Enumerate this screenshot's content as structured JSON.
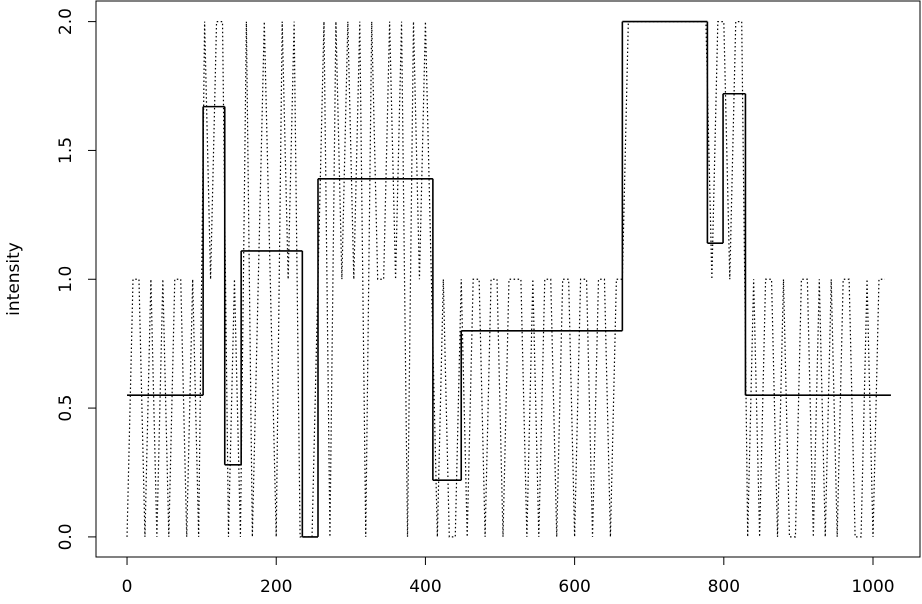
{
  "chart_data": {
    "type": "line",
    "ylabel": "intensity",
    "series": [
      {
        "color": "#000000",
        "linestyle": "dotted",
        "x": [
          0,
          8,
          16,
          24,
          32,
          40,
          48,
          56,
          64,
          72,
          80,
          88,
          96,
          104,
          112,
          120,
          128,
          136,
          144,
          152,
          160,
          168,
          176,
          184,
          192,
          200,
          208,
          216,
          224,
          232,
          240,
          248,
          256,
          264,
          272,
          280,
          288,
          296,
          304,
          312,
          320,
          328,
          336,
          344,
          352,
          360,
          368,
          376,
          384,
          392,
          400,
          408,
          416,
          424,
          432,
          440,
          448,
          456,
          464,
          472,
          480,
          488,
          496,
          504,
          512,
          520,
          528,
          536,
          544,
          552,
          560,
          568,
          576,
          584,
          592,
          600,
          608,
          616,
          624,
          632,
          640,
          648,
          656,
          664,
          672,
          680,
          688,
          696,
          704,
          712,
          720,
          728,
          736,
          744,
          752,
          760,
          768,
          776,
          784,
          792,
          800,
          808,
          816,
          824,
          832,
          840,
          848,
          856,
          864,
          872,
          880,
          888,
          896,
          904,
          912,
          920,
          928,
          936,
          944,
          952,
          960,
          968,
          976,
          984,
          992,
          1000,
          1008,
          1016
        ],
        "values": [
          0,
          1,
          1,
          0,
          1,
          0,
          1,
          0,
          1,
          1,
          0,
          1,
          0,
          2,
          1,
          2,
          2,
          0,
          1,
          0,
          2,
          0,
          1,
          2,
          1,
          0,
          2,
          1,
          2,
          0,
          0,
          0,
          1,
          2,
          0,
          2,
          1,
          2,
          1,
          2,
          0,
          2,
          1,
          1,
          2,
          1,
          2,
          0,
          2,
          1,
          2,
          1,
          0,
          1,
          0,
          0,
          1,
          0,
          1,
          1,
          0,
          1,
          1,
          0,
          1,
          1,
          1,
          0,
          1,
          0,
          1,
          1,
          0,
          1,
          1,
          0,
          1,
          1,
          0,
          1,
          1,
          0,
          1,
          1,
          2,
          2,
          2,
          2,
          2,
          2,
          2,
          2,
          2,
          2,
          2,
          2,
          2,
          2,
          1,
          2,
          2,
          1,
          2,
          2,
          0,
          1,
          0,
          1,
          1,
          0,
          1,
          0,
          0,
          1,
          1,
          0,
          1,
          0,
          1,
          0,
          1,
          1,
          0,
          0,
          1,
          0,
          1,
          1
        ]
      }
    ],
    "steps": {
      "color": "#000000",
      "breaks": [
        0,
        102,
        131,
        153,
        235,
        256,
        410,
        448,
        664,
        778,
        799,
        829,
        1024
      ],
      "values": [
        0.55,
        1.67,
        0.28,
        1.11,
        0,
        1.39,
        0.22,
        0.8,
        2.0,
        1.14,
        1.72,
        0.55
      ]
    },
    "xlim": [
      -41.6,
      1063
    ],
    "ylim": [
      -0.078,
      2.08
    ],
    "xticks": [
      0,
      200,
      400,
      600,
      800,
      1000
    ],
    "yticks": [
      {
        "value": 0,
        "label": "0.0"
      },
      {
        "value": 0.5,
        "label": "0.5"
      },
      {
        "value": 1,
        "label": "1.0"
      },
      {
        "value": 1.5,
        "label": "1.5"
      },
      {
        "value": 2,
        "label": "2.0"
      }
    ]
  }
}
